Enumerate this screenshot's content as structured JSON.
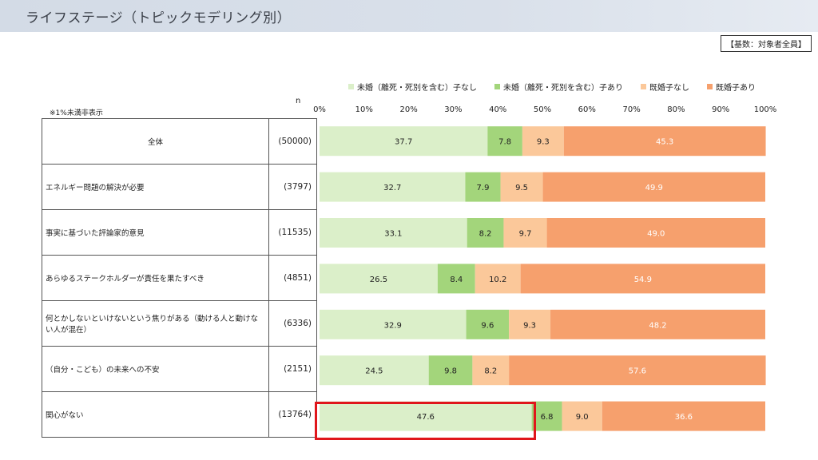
{
  "header": {
    "title": "ライフステージ（トピックモデリング別）"
  },
  "basis_label": "【基数：対象者全員】",
  "note": "※1%未満非表示",
  "n_header": "n",
  "colors": {
    "series": [
      "#dbefc9",
      "#a3d57b",
      "#fbc89a",
      "#f6a06d"
    ]
  },
  "chart_data": {
    "type": "bar",
    "orientation": "horizontal-stacked-100",
    "xlim": [
      0,
      100
    ],
    "x_ticks": [
      "0%",
      "10%",
      "20%",
      "30%",
      "40%",
      "50%",
      "60%",
      "70%",
      "80%",
      "90%",
      "100%"
    ],
    "legend_position": "top",
    "categories": [
      "全体",
      "エネルギー問題の解決が必要",
      "事実に基づいた評論家的意見",
      "あらゆるステークホルダーが責任を果たすべき",
      "何とかしないといけないという焦りがある（動ける人と動けない人が混在）",
      "（自分・こども）の未来への不安",
      "関心がない"
    ],
    "n": [
      "(50000)",
      "(3797)",
      "(11535)",
      "(4851)",
      "(6336)",
      "(2151)",
      "(13764)"
    ],
    "series": [
      {
        "name": "未婚（離死・死別を含む）子なし",
        "values": [
          37.7,
          32.7,
          33.1,
          26.5,
          32.9,
          24.5,
          47.6
        ]
      },
      {
        "name": "未婚（離死・死別を含む）子あり",
        "values": [
          7.8,
          7.9,
          8.2,
          8.4,
          9.6,
          9.8,
          6.8
        ]
      },
      {
        "name": "既婚子なし",
        "values": [
          9.3,
          9.5,
          9.7,
          10.2,
          9.3,
          8.2,
          9.0
        ]
      },
      {
        "name": "既婚子あり",
        "values": [
          45.3,
          49.9,
          49.0,
          54.9,
          48.2,
          57.6,
          36.6
        ]
      }
    ],
    "highlight": {
      "row": "関心がない",
      "series": "未婚（離死・死別を含む）子なし",
      "value": 47.6
    }
  }
}
